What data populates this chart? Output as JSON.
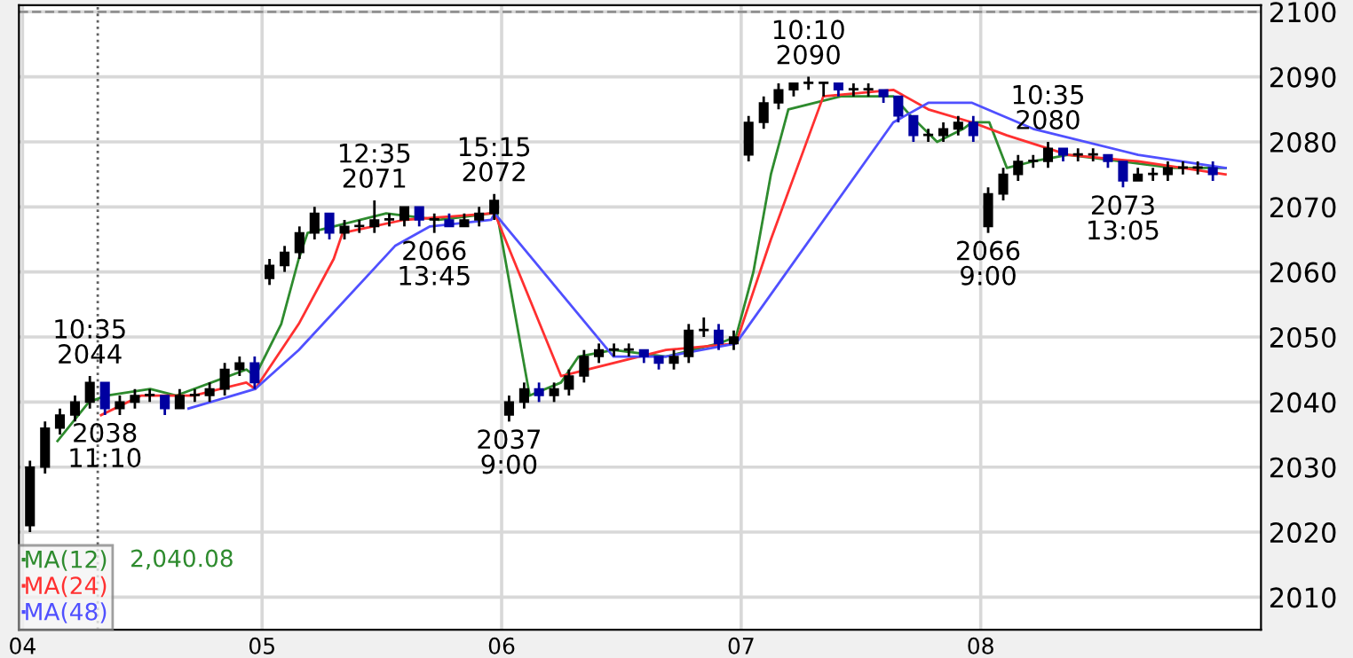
{
  "chart_data": {
    "type": "candlestick",
    "x": [
      4.031,
      4.094,
      4.156,
      4.219,
      4.281,
      4.344,
      4.406,
      4.469,
      4.531,
      4.594,
      4.656,
      4.719,
      4.781,
      4.844,
      4.906,
      4.969,
      5.031,
      5.094,
      5.156,
      5.219,
      5.281,
      5.344,
      5.406,
      5.469,
      5.531,
      5.594,
      5.656,
      5.719,
      5.781,
      5.844,
      5.906,
      5.969,
      6.031,
      6.094,
      6.156,
      6.219,
      6.281,
      6.344,
      6.406,
      6.469,
      6.531,
      6.594,
      6.656,
      6.719,
      6.781,
      6.844,
      6.906,
      6.969,
      7.031,
      7.094,
      7.156,
      7.219,
      7.281,
      7.344,
      7.406,
      7.469,
      7.531,
      7.594,
      7.656,
      7.719,
      7.781,
      7.844,
      7.906,
      7.969,
      8.031,
      8.094,
      8.156,
      8.219,
      8.281,
      8.344,
      8.406,
      8.469,
      8.531,
      8.594,
      8.656,
      8.719,
      8.781,
      8.844,
      8.906,
      8.969
    ],
    "ohlc": [
      [
        2021,
        2031,
        2020,
        2030
      ],
      [
        2030,
        2037,
        2029,
        2036
      ],
      [
        2036,
        2039,
        2035,
        2038
      ],
      [
        2038,
        2041,
        2037,
        2040
      ],
      [
        2040,
        2044,
        2039,
        2043
      ],
      [
        2043,
        2043,
        2038,
        2039
      ],
      [
        2039,
        2041,
        2038,
        2040
      ],
      [
        2040,
        2042,
        2039,
        2041
      ],
      [
        2041,
        2042,
        2040,
        2041
      ],
      [
        2041,
        2041,
        2038,
        2039
      ],
      [
        2039,
        2042,
        2039,
        2041
      ],
      [
        2041,
        2042,
        2040,
        2041
      ],
      [
        2041,
        2043,
        2040,
        2042
      ],
      [
        2042,
        2046,
        2041,
        2045
      ],
      [
        2045,
        2047,
        2044,
        2046
      ],
      [
        2046,
        2047,
        2042,
        2043
      ],
      [
        2059,
        2062,
        2058,
        2061
      ],
      [
        2061,
        2064,
        2060,
        2063
      ],
      [
        2063,
        2067,
        2062,
        2066
      ],
      [
        2066,
        2070,
        2065,
        2069
      ],
      [
        2069,
        2069,
        2065,
        2066
      ],
      [
        2066,
        2068,
        2065,
        2067
      ],
      [
        2067,
        2068,
        2066,
        2067
      ],
      [
        2067,
        2071,
        2066,
        2068
      ],
      [
        2068,
        2069,
        2067,
        2068
      ],
      [
        2068,
        2070,
        2067,
        2070
      ],
      [
        2070,
        2070,
        2067,
        2068
      ],
      [
        2068,
        2069,
        2066,
        2068
      ],
      [
        2068,
        2069,
        2067,
        2067
      ],
      [
        2067,
        2069,
        2067,
        2068
      ],
      [
        2068,
        2070,
        2067,
        2069
      ],
      [
        2069,
        2072,
        2068,
        2071
      ],
      [
        2038,
        2041,
        2037,
        2040
      ],
      [
        2040,
        2043,
        2039,
        2042
      ],
      [
        2042,
        2043,
        2040,
        2041
      ],
      [
        2041,
        2043,
        2040,
        2042
      ],
      [
        2042,
        2045,
        2041,
        2044
      ],
      [
        2044,
        2048,
        2043,
        2047
      ],
      [
        2047,
        2049,
        2046,
        2048
      ],
      [
        2048,
        2049,
        2047,
        2048
      ],
      [
        2048,
        2049,
        2047,
        2048
      ],
      [
        2048,
        2048,
        2046,
        2047
      ],
      [
        2047,
        2047,
        2045,
        2046
      ],
      [
        2046,
        2048,
        2045,
        2047
      ],
      [
        2047,
        2052,
        2046,
        2051
      ],
      [
        2051,
        2053,
        2050,
        2051
      ],
      [
        2051,
        2052,
        2048,
        2049
      ],
      [
        2049,
        2051,
        2048,
        2050
      ],
      [
        2078,
        2084,
        2077,
        2083
      ],
      [
        2083,
        2087,
        2082,
        2086
      ],
      [
        2086,
        2089,
        2085,
        2088
      ],
      [
        2088,
        2089,
        2087,
        2089
      ],
      [
        2089,
        2090,
        2088,
        2089
      ],
      [
        2089,
        2089,
        2087,
        2089
      ],
      [
        2089,
        2089,
        2087,
        2088
      ],
      [
        2088,
        2089,
        2087,
        2088
      ],
      [
        2088,
        2089,
        2087,
        2088
      ],
      [
        2088,
        2088,
        2086,
        2087
      ],
      [
        2087,
        2087,
        2083,
        2084
      ],
      [
        2084,
        2084,
        2080,
        2081
      ],
      [
        2081,
        2082,
        2080,
        2081
      ],
      [
        2081,
        2083,
        2080,
        2082
      ],
      [
        2082,
        2084,
        2081,
        2083
      ],
      [
        2083,
        2084,
        2080,
        2081
      ],
      [
        2067,
        2073,
        2066,
        2072
      ],
      [
        2072,
        2076,
        2071,
        2075
      ],
      [
        2075,
        2078,
        2074,
        2077
      ],
      [
        2077,
        2078,
        2076,
        2077
      ],
      [
        2077,
        2080,
        2076,
        2079
      ],
      [
        2079,
        2079,
        2077,
        2078
      ],
      [
        2078,
        2079,
        2077,
        2078
      ],
      [
        2078,
        2079,
        2077,
        2078
      ],
      [
        2078,
        2078,
        2076,
        2077
      ],
      [
        2077,
        2077,
        2073,
        2074
      ],
      [
        2074,
        2076,
        2074,
        2075
      ],
      [
        2075,
        2076,
        2074,
        2075
      ],
      [
        2075,
        2077,
        2074,
        2076
      ],
      [
        2076,
        2077,
        2075,
        2076
      ],
      [
        2076,
        2077,
        2075,
        2076
      ],
      [
        2076,
        2077,
        2074,
        2075
      ]
    ],
    "colors": [
      "#000000",
      "#000000",
      "#000000",
      "#000000",
      "#000000",
      "#0000a0",
      "#000000",
      "#000000",
      "#000000",
      "#0000a0",
      "#000000",
      "#000000",
      "#000000",
      "#000000",
      "#000000",
      "#0000a0",
      "#000000",
      "#000000",
      "#000000",
      "#000000",
      "#0000a0",
      "#000000",
      "#000000",
      "#000000",
      "#000000",
      "#000000",
      "#0000a0",
      "#000000",
      "#0000a0",
      "#000000",
      "#000000",
      "#000000",
      "#000000",
      "#000000",
      "#0000a0",
      "#000000",
      "#000000",
      "#000000",
      "#000000",
      "#000000",
      "#000000",
      "#0000a0",
      "#0000a0",
      "#000000",
      "#000000",
      "#000000",
      "#0000a0",
      "#000000",
      "#000000",
      "#000000",
      "#000000",
      "#000000",
      "#000000",
      "#000000",
      "#0000a0",
      "#000000",
      "#000000",
      "#0000a0",
      "#0000a0",
      "#0000a0",
      "#000000",
      "#000000",
      "#000000",
      "#0000a0",
      "#000000",
      "#000000",
      "#000000",
      "#000000",
      "#000000",
      "#0000a0",
      "#000000",
      "#000000",
      "#0000a0",
      "#0000a0",
      "#000000",
      "#000000",
      "#000000",
      "#000000",
      "#000000",
      "#0000a0"
    ],
    "series": [
      {
        "type": "line",
        "name": "MA(12)",
        "color": "#2e8b2e",
        "x": [
          4.146,
          4.277,
          4.35,
          4.533,
          4.642,
          4.934,
          4.971,
          5.08,
          5.153,
          5.19,
          5.299,
          5.518,
          5.737,
          5.956,
          5.971,
          6.117,
          6.248,
          6.321,
          6.467,
          6.686,
          6.905,
          6.978,
          7.051,
          7.124,
          7.197,
          7.416,
          7.635,
          7.708,
          7.818,
          7.927,
          7.964,
          8.036,
          8.109,
          8.219,
          8.365,
          8.584,
          8.803,
          9.022
        ],
        "values": [
          2034,
          2040,
          2041,
          2042,
          2041,
          2045,
          2044,
          2052,
          2062,
          2066,
          2067,
          2069,
          2068,
          2069,
          2071,
          2041,
          2043,
          2047,
          2048,
          2047,
          2049,
          2050,
          2060,
          2075,
          2085,
          2087,
          2087,
          2084,
          2080,
          2082,
          2083,
          2083,
          2076,
          2077,
          2078,
          2077,
          2076,
          2076
        ]
      },
      {
        "type": "line",
        "name": "MA(24)",
        "color": "#ff3030",
        "x": [
          4.328,
          4.496,
          4.715,
          4.934,
          4.971,
          5.153,
          5.299,
          5.336,
          5.591,
          5.956,
          5.971,
          6.248,
          6.467,
          6.686,
          6.978,
          7.124,
          7.343,
          7.635,
          7.781,
          7.964,
          8.109,
          8.365,
          8.657,
          9.022
        ],
        "values": [
          2038,
          2041,
          2041,
          2043,
          2042,
          2052,
          2062,
          2066,
          2068,
          2069,
          2069,
          2044,
          2046,
          2048,
          2049,
          2065,
          2087,
          2088,
          2085,
          2083,
          2081,
          2078,
          2077,
          2075
        ]
      },
      {
        "type": "line",
        "name": "MA(48)",
        "color": "#5050ff",
        "x": [
          4.693,
          4.971,
          5.153,
          5.555,
          5.701,
          5.956,
          5.971,
          6.467,
          6.686,
          6.978,
          7.635,
          7.781,
          7.964,
          8.219,
          8.657,
          9.022
        ],
        "values": [
          2039,
          2042,
          2048,
          2064,
          2067,
          2068,
          2069,
          2047,
          2047,
          2049,
          2083,
          2086,
          2086,
          2082,
          2078,
          2076
        ]
      }
    ],
    "annotations": [
      {
        "text": "10:35\n2044",
        "x": 4.281,
        "y": 2044
      },
      {
        "text": "2038\n11:10",
        "x": 4.344,
        "y": 2038
      },
      {
        "text": "12:35\n2071",
        "x": 5.469,
        "y": 2071
      },
      {
        "text": "2066\n13:45",
        "x": 5.719,
        "y": 2066
      },
      {
        "text": "15:15\n2072",
        "x": 5.969,
        "y": 2072
      },
      {
        "text": "2037\n9:00",
        "x": 6.031,
        "y": 2037
      },
      {
        "text": "10:10\n2090",
        "x": 7.281,
        "y": 2090
      },
      {
        "text": "2066\n9:00",
        "x": 8.031,
        "y": 2066
      },
      {
        "text": "10:35\n2080",
        "x": 8.281,
        "y": 2080
      },
      {
        "text": "2073\n13:05",
        "x": 8.594,
        "y": 2073
      },
      "2,040.08"
    ],
    "ref_lines": [
      {
        "axis": "x",
        "value": 4.314,
        "color": "#606060",
        "line_style": "dotted"
      },
      {
        "axis": "y",
        "value": 2100,
        "color": "#909090",
        "line_style": "dashed"
      }
    ],
    "xlim": [
      3.985,
      9.17
    ],
    "xticks": [
      {
        "value": 4,
        "label": "04"
      },
      {
        "value": 5,
        "label": "05"
      },
      {
        "value": 6,
        "label": "06"
      },
      {
        "value": 7,
        "label": "07"
      },
      {
        "value": 8,
        "label": "08"
      }
    ],
    "ylim": [
      2005,
      2101
    ],
    "yticks": [
      2010,
      2020,
      2030,
      2040,
      2050,
      2060,
      2070,
      2080,
      2090,
      2100
    ],
    "grid": true,
    "legend": "bottom left"
  }
}
